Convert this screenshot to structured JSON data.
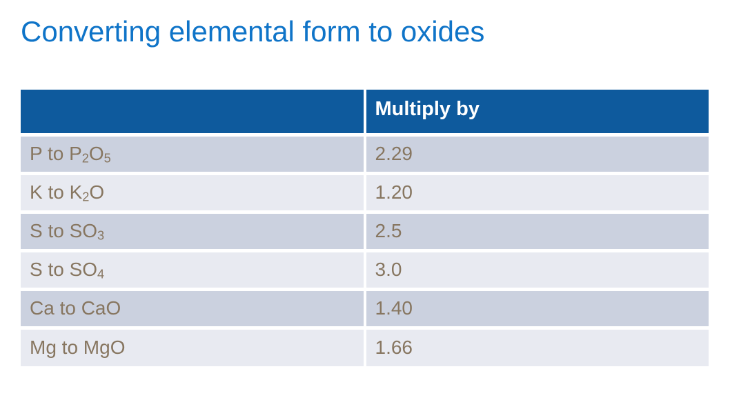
{
  "slide": {
    "title": "Converting elemental form to oxides"
  },
  "colors": {
    "page_bg": "#FFFFFF",
    "title_text": "#0F74C8",
    "header_bg": "#0E5A9D",
    "header_text": "#FFFFFF",
    "row_odd_bg": "#CBD1DF",
    "row_even_bg": "#E8EAF1",
    "cell_text": "#877660",
    "divider": "#FFFFFF"
  },
  "table": {
    "columns": [
      "",
      "Multiply by"
    ],
    "rows": [
      {
        "conversion": [
          {
            "text": "P to P"
          },
          {
            "text": "2",
            "sub": true
          },
          {
            "text": "O"
          },
          {
            "text": "5",
            "sub": true
          }
        ],
        "factor": "2.29"
      },
      {
        "conversion": [
          {
            "text": "K to K"
          },
          {
            "text": "2",
            "sub": true
          },
          {
            "text": "O"
          }
        ],
        "factor": "1.20"
      },
      {
        "conversion": [
          {
            "text": "S to SO"
          },
          {
            "text": "3",
            "sub": true
          }
        ],
        "factor": "2.5"
      },
      {
        "conversion": [
          {
            "text": "S to SO"
          },
          {
            "text": "4",
            "sub": true
          }
        ],
        "factor": "3.0"
      },
      {
        "conversion": [
          {
            "text": "Ca to CaO"
          }
        ],
        "factor": "1.40"
      },
      {
        "conversion": [
          {
            "text": "Mg to MgO"
          }
        ],
        "factor": "1.66"
      }
    ]
  }
}
